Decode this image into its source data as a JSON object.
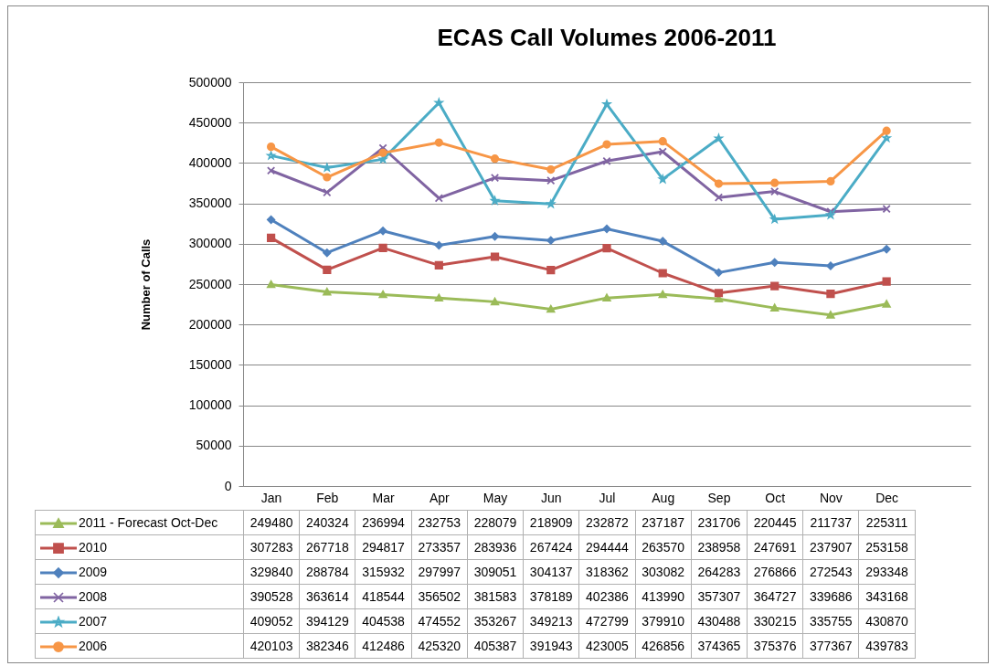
{
  "chart_data": {
    "type": "line",
    "title": "ECAS Call Volumes 2006-2011",
    "ylabel": "Number of Calls",
    "categories": [
      "Jan",
      "Feb",
      "Mar",
      "Apr",
      "May",
      "Jun",
      "Jul",
      "Aug",
      "Sep",
      "Oct",
      "Nov",
      "Dec",
      null
    ],
    "ylim": [
      0,
      500000
    ],
    "yticks": [
      0,
      50000,
      100000,
      150000,
      200000,
      250000,
      300000,
      350000,
      400000,
      450000,
      500000
    ],
    "grid": "y",
    "legend": "bottom",
    "data_labels": true,
    "line_style": "solid",
    "series": [
      {
        "name": "2011 - Forecast Oct-Dec",
        "color": "#9bbb59",
        "marker": "triangle",
        "values": [
          249480,
          240324,
          236994,
          232753,
          228079,
          218909,
          232872,
          237187,
          231706,
          220445,
          211737,
          225311,
          null
        ]
      },
      {
        "name": "2010",
        "color": "#c0504d",
        "marker": "square",
        "values": [
          307283,
          267718,
          294817,
          273357,
          283936,
          267424,
          294444,
          263570,
          238958,
          247691,
          237907,
          253158,
          null
        ]
      },
      {
        "name": "2009",
        "color": "#4f81bd",
        "marker": "diamond",
        "values": [
          329840,
          288784,
          315932,
          297997,
          309051,
          304137,
          318362,
          303082,
          264283,
          276866,
          272543,
          293348,
          null
        ]
      },
      {
        "name": "2008",
        "color": "#8064a2",
        "marker": "cross",
        "values": [
          390528,
          363614,
          418544,
          356502,
          381583,
          378189,
          402386,
          413990,
          357307,
          364727,
          339686,
          343168,
          null
        ]
      },
      {
        "name": "2007",
        "color": "#4bacc6",
        "marker": "star",
        "values": [
          409052,
          394129,
          404538,
          474552,
          353267,
          349213,
          472799,
          379910,
          430488,
          330215,
          335755,
          430870,
          null
        ]
      },
      {
        "name": "2006",
        "color": "#f79646",
        "marker": "circle",
        "values": [
          420103,
          382346,
          412486,
          425320,
          405387,
          391943,
          423005,
          426856,
          374365,
          375376,
          377367,
          439783,
          null
        ]
      }
    ]
  }
}
